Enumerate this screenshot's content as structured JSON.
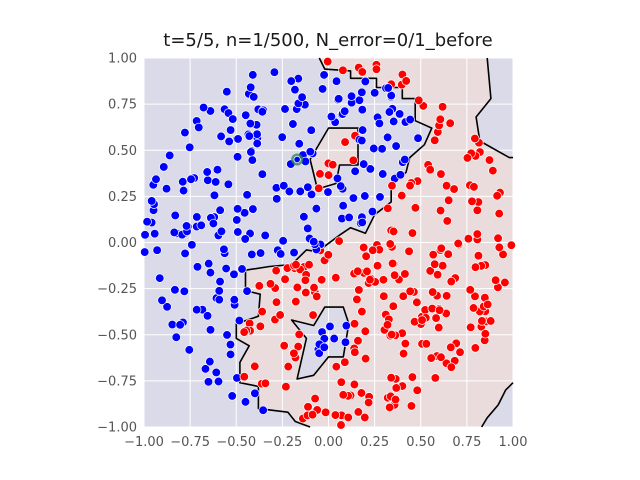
{
  "chart_data": {
    "type": "scatter",
    "title": "t=5/5, n=1/500, N_error=0/1_before",
    "xlim": [
      -1.0,
      1.0
    ],
    "ylim": [
      -1.0,
      1.0
    ],
    "xticks": [
      "−1.00",
      "−0.75",
      "−0.50",
      "−0.25",
      "0.00",
      "0.25",
      "0.50",
      "0.75",
      "1.00"
    ],
    "yticks": [
      "1.00",
      "0.75",
      "0.50",
      "0.25",
      "0.00",
      "−0.25",
      "−0.50",
      "−0.75",
      "−1.00"
    ],
    "grid": true,
    "colors": {
      "class_0_points": "#0000ff",
      "class_1_points": "#ff0000",
      "class_0_region": "#dadae8",
      "class_1_region": "#eadcdc",
      "boundary": "#000000",
      "highlight": "#2e8b57",
      "plot_background": "#e5e5ee"
    },
    "highlight_point": {
      "x": -0.17,
      "y": 0.45
    },
    "boundary_main": [
      [
        -0.05,
        1.0
      ],
      [
        -0.02,
        0.94
      ],
      [
        0.12,
        0.93
      ],
      [
        0.12,
        0.89
      ],
      [
        0.26,
        0.89
      ],
      [
        0.26,
        0.84
      ],
      [
        0.4,
        0.84
      ],
      [
        0.4,
        0.78
      ],
      [
        0.47,
        0.78
      ],
      [
        0.47,
        0.66
      ],
      [
        0.56,
        0.62
      ],
      [
        0.52,
        0.53
      ],
      [
        0.44,
        0.46
      ],
      [
        0.42,
        0.38
      ],
      [
        0.34,
        0.32
      ],
      [
        0.34,
        0.22
      ],
      [
        0.25,
        0.15
      ],
      [
        0.2,
        0.05
      ],
      [
        0.12,
        0.08
      ],
      [
        0.06,
        0.04
      ],
      [
        -0.06,
        -0.05
      ],
      [
        -0.12,
        -0.04
      ],
      [
        -0.2,
        -0.12
      ],
      [
        -0.32,
        -0.13
      ],
      [
        -0.45,
        -0.15
      ],
      [
        -0.45,
        -0.26
      ],
      [
        -0.37,
        -0.28
      ],
      [
        -0.38,
        -0.4
      ],
      [
        -0.5,
        -0.44
      ],
      [
        -0.5,
        -0.52
      ],
      [
        -0.43,
        -0.56
      ],
      [
        -0.48,
        -0.65
      ],
      [
        -0.48,
        -0.76
      ],
      [
        -0.38,
        -0.78
      ],
      [
        -0.38,
        -0.9
      ],
      [
        -0.22,
        -0.92
      ],
      [
        -0.18,
        -0.97
      ],
      [
        -0.1,
        -1.0
      ]
    ],
    "boundary_right": [
      [
        0.86,
        1.0
      ],
      [
        0.88,
        0.78
      ],
      [
        0.8,
        0.68
      ],
      [
        0.82,
        0.55
      ],
      [
        0.98,
        0.46
      ],
      [
        1.0,
        0.46
      ]
    ],
    "boundary_bottom_right": [
      [
        1.0,
        -0.76
      ],
      [
        0.96,
        -0.8
      ],
      [
        0.92,
        -0.88
      ],
      [
        0.86,
        -0.95
      ],
      [
        0.83,
        -1.0
      ]
    ],
    "boundary_pocket": [
      [
        0.0,
        0.62
      ],
      [
        0.16,
        0.62
      ],
      [
        0.16,
        0.42
      ],
      [
        0.06,
        0.42
      ],
      [
        0.04,
        0.32
      ],
      [
        -0.06,
        0.29
      ],
      [
        -0.1,
        0.45
      ]
    ],
    "boundary_lower_island": [
      [
        -0.02,
        -0.35
      ],
      [
        0.08,
        -0.35
      ],
      [
        0.11,
        -0.44
      ],
      [
        0.08,
        -0.62
      ],
      [
        0.0,
        -0.62
      ],
      [
        -0.08,
        -0.72
      ],
      [
        -0.17,
        -0.74
      ],
      [
        -0.12,
        -0.52
      ],
      [
        -0.2,
        -0.42
      ],
      [
        -0.08,
        -0.45
      ]
    ]
  }
}
